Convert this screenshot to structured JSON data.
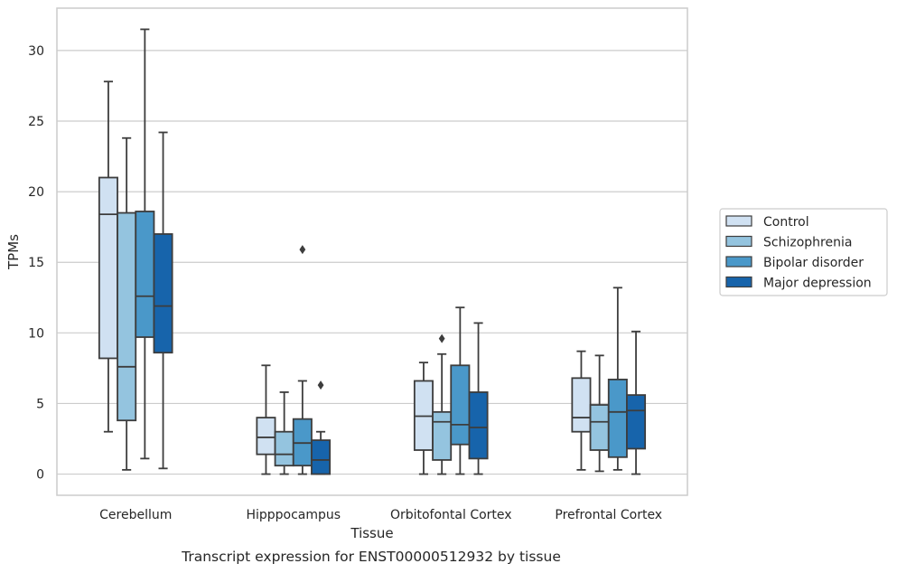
{
  "chart_data": {
    "type": "box",
    "xlabel": "Tissue",
    "ylabel": "TPMs",
    "caption": "Transcript expression for ENST00000512932 by tissue",
    "ylim": [
      -1.5,
      33
    ],
    "yticks": [
      0,
      5,
      10,
      15,
      20,
      25,
      30
    ],
    "grid": "horizontal",
    "legend_position": "right",
    "categories": [
      "Cerebellum",
      "Hipppocampus",
      "Orbitofontal Cortex",
      "Prefrontal Cortex"
    ],
    "series": [
      {
        "name": "Control",
        "color": "#d0e1f2",
        "boxes": [
          {
            "whislo": 3.0,
            "q1": 8.2,
            "med": 18.4,
            "q3": 21.0,
            "whishi": 27.8,
            "fliers": []
          },
          {
            "whislo": 0.0,
            "q1": 1.4,
            "med": 2.6,
            "q3": 4.0,
            "whishi": 7.7,
            "fliers": []
          },
          {
            "whislo": 0.0,
            "q1": 1.7,
            "med": 4.1,
            "q3": 6.6,
            "whishi": 7.9,
            "fliers": []
          },
          {
            "whislo": 0.3,
            "q1": 3.0,
            "med": 4.0,
            "q3": 6.8,
            "whishi": 8.7,
            "fliers": []
          }
        ]
      },
      {
        "name": "Schizophrenia",
        "color": "#94c4df",
        "boxes": [
          {
            "whislo": 0.3,
            "q1": 3.8,
            "med": 7.6,
            "q3": 18.5,
            "whishi": 23.8,
            "fliers": []
          },
          {
            "whislo": 0.0,
            "q1": 0.6,
            "med": 1.4,
            "q3": 3.0,
            "whishi": 5.8,
            "fliers": []
          },
          {
            "whislo": 0.0,
            "q1": 1.0,
            "med": 3.7,
            "q3": 4.4,
            "whishi": 8.5,
            "fliers": [
              9.6
            ]
          },
          {
            "whislo": 0.2,
            "q1": 1.7,
            "med": 3.7,
            "q3": 4.9,
            "whishi": 8.4,
            "fliers": []
          }
        ]
      },
      {
        "name": "Bipolar disorder",
        "color": "#4a98c9",
        "boxes": [
          {
            "whislo": 1.1,
            "q1": 9.7,
            "med": 12.6,
            "q3": 18.6,
            "whishi": 31.5,
            "fliers": []
          },
          {
            "whislo": 0.0,
            "q1": 0.6,
            "med": 2.2,
            "q3": 3.9,
            "whishi": 6.6,
            "fliers": [
              15.9
            ]
          },
          {
            "whislo": 0.0,
            "q1": 2.1,
            "med": 3.5,
            "q3": 7.7,
            "whishi": 11.8,
            "fliers": []
          },
          {
            "whislo": 0.3,
            "q1": 1.2,
            "med": 4.4,
            "q3": 6.7,
            "whishi": 13.2,
            "fliers": []
          }
        ]
      },
      {
        "name": "Major depression",
        "color": "#1764ab",
        "boxes": [
          {
            "whislo": 0.4,
            "q1": 8.6,
            "med": 11.9,
            "q3": 17.0,
            "whishi": 24.2,
            "fliers": []
          },
          {
            "whislo": 0.0,
            "q1": 0.0,
            "med": 1.0,
            "q3": 2.4,
            "whishi": 3.0,
            "fliers": [
              6.3
            ]
          },
          {
            "whislo": 0.0,
            "q1": 1.1,
            "med": 3.3,
            "q3": 5.8,
            "whishi": 10.7,
            "fliers": []
          },
          {
            "whislo": 0.0,
            "q1": 1.8,
            "med": 4.5,
            "q3": 5.6,
            "whishi": 10.1,
            "fliers": []
          }
        ]
      }
    ]
  }
}
